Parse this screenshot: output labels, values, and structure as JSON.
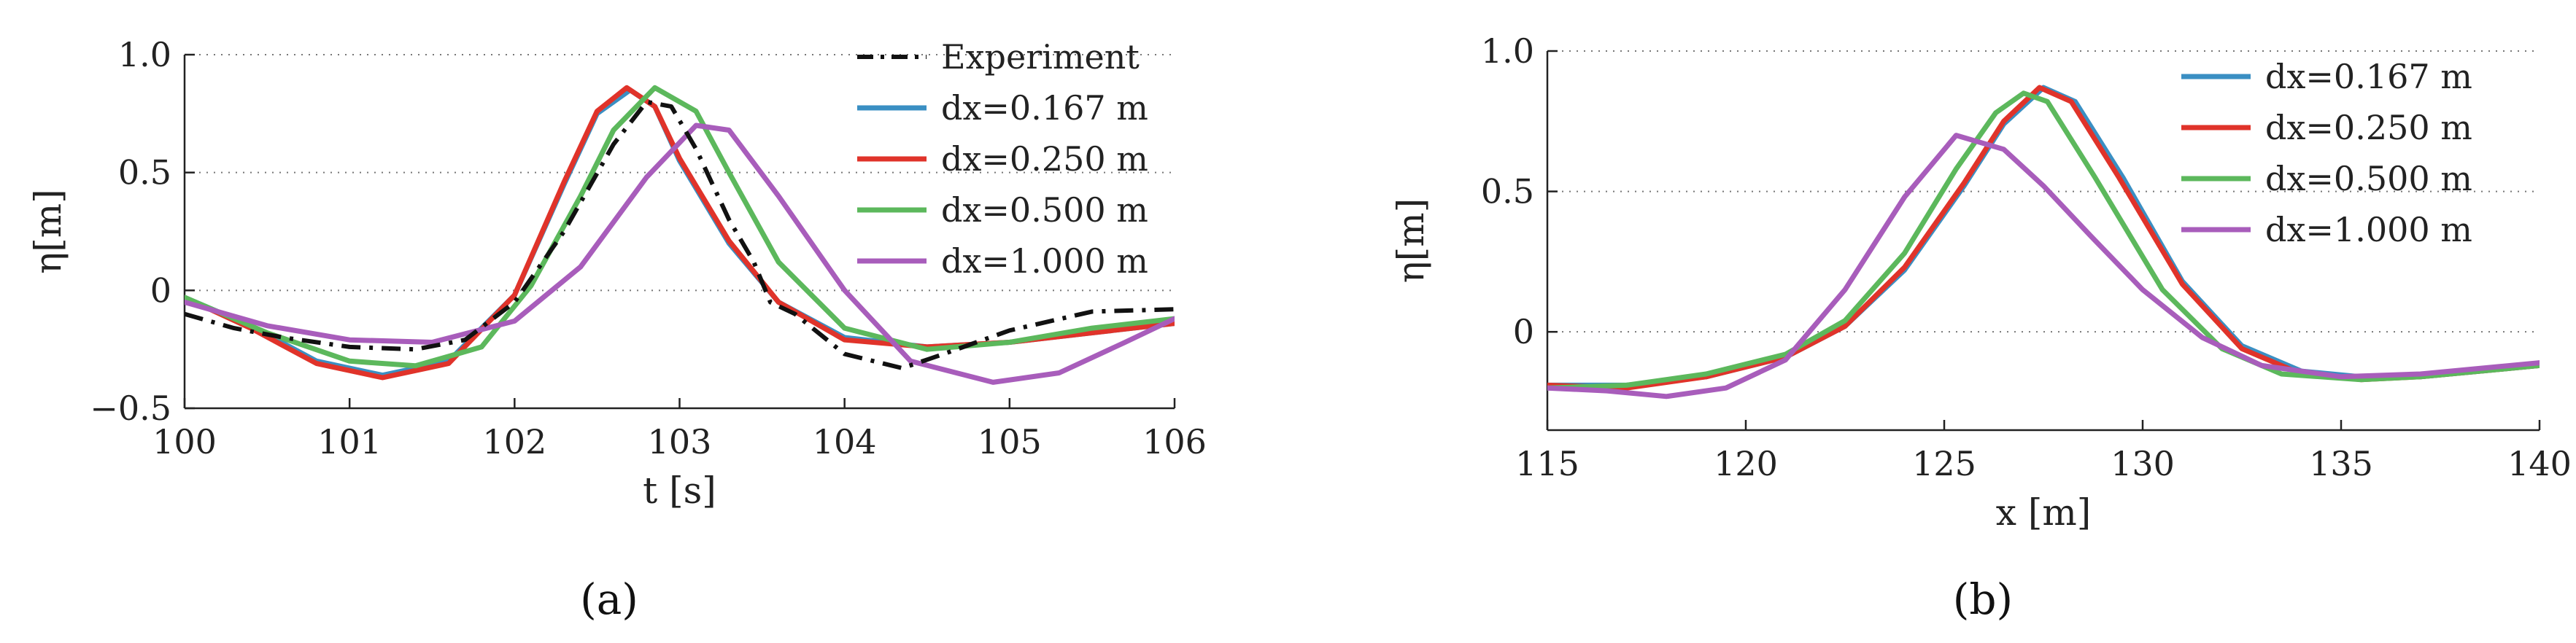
{
  "chart_data": [
    {
      "type": "line",
      "panel_label": "(a)",
      "xlabel": "t [s]",
      "ylabel": "η[m]",
      "xlim": [
        100,
        106
      ],
      "ylim": [
        -0.5,
        1.0
      ],
      "xticks": [
        100,
        101,
        102,
        103,
        104,
        105,
        106
      ],
      "xtick_labels": [
        "100",
        "101",
        "102",
        "103",
        "104",
        "105",
        "106"
      ],
      "yticks": [
        -0.5,
        0,
        0.5,
        1.0
      ],
      "ytick_labels": [
        "−0.5",
        "0",
        "0.5",
        "1.0"
      ],
      "grid_y": [
        0,
        0.5,
        1.0
      ],
      "legend_position": "top-right",
      "series": [
        {
          "name": "Experiment",
          "color": "#111111",
          "style": "dashdot",
          "x": [
            100,
            100.3,
            100.6,
            101.0,
            101.4,
            101.7,
            102.0,
            102.3,
            102.6,
            102.8,
            102.95,
            103.1,
            103.3,
            103.45,
            103.55,
            103.7,
            104.0,
            104.35,
            104.6,
            105.0,
            105.5,
            106.0
          ],
          "y": [
            -0.1,
            -0.16,
            -0.2,
            -0.24,
            -0.25,
            -0.21,
            -0.05,
            0.25,
            0.62,
            0.8,
            0.78,
            0.6,
            0.3,
            0.12,
            -0.05,
            -0.1,
            -0.27,
            -0.33,
            -0.27,
            -0.17,
            -0.09,
            -0.08
          ]
        },
        {
          "name": "dx=0.167 m",
          "color": "#3a8fc3",
          "style": "solid",
          "x": [
            100,
            100.4,
            100.8,
            101.2,
            101.6,
            102.0,
            102.3,
            102.5,
            102.7,
            102.85,
            103.0,
            103.3,
            103.6,
            104.0,
            104.5,
            105.0,
            105.5,
            106.0
          ],
          "y": [
            -0.03,
            -0.15,
            -0.3,
            -0.36,
            -0.3,
            -0.02,
            0.45,
            0.75,
            0.85,
            0.78,
            0.55,
            0.2,
            -0.05,
            -0.2,
            -0.24,
            -0.22,
            -0.18,
            -0.14
          ]
        },
        {
          "name": "dx=0.250 m",
          "color": "#e0332a",
          "style": "solid",
          "x": [
            100,
            100.4,
            100.8,
            101.2,
            101.6,
            102.0,
            102.3,
            102.5,
            102.68,
            102.85,
            103.0,
            103.3,
            103.6,
            104.0,
            104.5,
            105.0,
            105.5,
            106.0
          ],
          "y": [
            -0.03,
            -0.16,
            -0.31,
            -0.37,
            -0.31,
            -0.02,
            0.46,
            0.76,
            0.86,
            0.78,
            0.56,
            0.21,
            -0.05,
            -0.21,
            -0.24,
            -0.22,
            -0.18,
            -0.14
          ]
        },
        {
          "name": "dx=0.500 m",
          "color": "#5cb85c",
          "style": "solid",
          "x": [
            100,
            100.5,
            101.0,
            101.4,
            101.8,
            102.1,
            102.4,
            102.6,
            102.85,
            103.1,
            103.3,
            103.6,
            104.0,
            104.5,
            105.0,
            105.5,
            106.0
          ],
          "y": [
            -0.03,
            -0.18,
            -0.3,
            -0.32,
            -0.24,
            0.02,
            0.4,
            0.68,
            0.86,
            0.76,
            0.5,
            0.12,
            -0.16,
            -0.25,
            -0.22,
            -0.16,
            -0.12
          ]
        },
        {
          "name": "dx=1.000 m",
          "color": "#a85dbb",
          "style": "solid",
          "x": [
            100,
            100.5,
            101.0,
            101.5,
            102.0,
            102.4,
            102.8,
            103.1,
            103.3,
            103.6,
            104.0,
            104.4,
            104.9,
            105.3,
            105.7,
            106.0
          ],
          "y": [
            -0.05,
            -0.15,
            -0.21,
            -0.22,
            -0.13,
            0.1,
            0.48,
            0.7,
            0.68,
            0.4,
            0.0,
            -0.3,
            -0.39,
            -0.35,
            -0.22,
            -0.12
          ]
        }
      ]
    },
    {
      "type": "line",
      "panel_label": "(b)",
      "xlabel": "x [m]",
      "ylabel": "η[m]",
      "xlim": [
        115,
        140
      ],
      "ylim": [
        -0.35,
        1.0
      ],
      "xticks": [
        115,
        120,
        125,
        130,
        135,
        140
      ],
      "xtick_labels": [
        "115",
        "120",
        "125",
        "130",
        "135",
        "140"
      ],
      "yticks": [
        0,
        0.5,
        1.0
      ],
      "ytick_labels": [
        "0",
        "0.5",
        "1.0"
      ],
      "grid_y": [
        0,
        0.5,
        1.0
      ],
      "legend_position": "top-right",
      "series": [
        {
          "name": "dx=0.167 m",
          "color": "#3a8fc3",
          "style": "solid",
          "x": [
            115,
            117,
            119,
            121,
            122.5,
            124,
            125.5,
            126.5,
            127.5,
            128.3,
            129.5,
            131,
            132.5,
            134,
            135.5,
            137,
            140
          ],
          "y": [
            -0.19,
            -0.19,
            -0.16,
            -0.09,
            0.02,
            0.22,
            0.52,
            0.74,
            0.87,
            0.82,
            0.55,
            0.18,
            -0.05,
            -0.14,
            -0.16,
            -0.16,
            -0.12
          ]
        },
        {
          "name": "dx=0.250 m",
          "color": "#e0332a",
          "style": "solid",
          "x": [
            115,
            117,
            119,
            121,
            122.5,
            124,
            125.5,
            126.5,
            127.4,
            128.2,
            129.4,
            131,
            132.5,
            134,
            135.5,
            137,
            140
          ],
          "y": [
            -0.19,
            -0.2,
            -0.16,
            -0.09,
            0.02,
            0.23,
            0.53,
            0.75,
            0.87,
            0.82,
            0.55,
            0.17,
            -0.06,
            -0.15,
            -0.17,
            -0.16,
            -0.12
          ]
        },
        {
          "name": "dx=0.500 m",
          "color": "#5cb85c",
          "style": "solid",
          "x": [
            115,
            117,
            119,
            121,
            122.5,
            124,
            125.3,
            126.3,
            127.0,
            127.6,
            128.8,
            130.5,
            132,
            133.5,
            135.5,
            137,
            140
          ],
          "y": [
            -0.2,
            -0.19,
            -0.15,
            -0.08,
            0.04,
            0.28,
            0.58,
            0.78,
            0.85,
            0.82,
            0.55,
            0.15,
            -0.06,
            -0.15,
            -0.17,
            -0.16,
            -0.12
          ]
        },
        {
          "name": "dx=1.000 m",
          "color": "#a85dbb",
          "style": "solid",
          "x": [
            115,
            116.5,
            118,
            119.5,
            121,
            122.5,
            124,
            125.3,
            126.5,
            127.5,
            128.7,
            130,
            131.5,
            133,
            135,
            137,
            140
          ],
          "y": [
            -0.2,
            -0.21,
            -0.23,
            -0.2,
            -0.1,
            0.15,
            0.48,
            0.7,
            0.65,
            0.52,
            0.34,
            0.15,
            -0.02,
            -0.12,
            -0.16,
            -0.15,
            -0.11
          ]
        }
      ]
    }
  ]
}
